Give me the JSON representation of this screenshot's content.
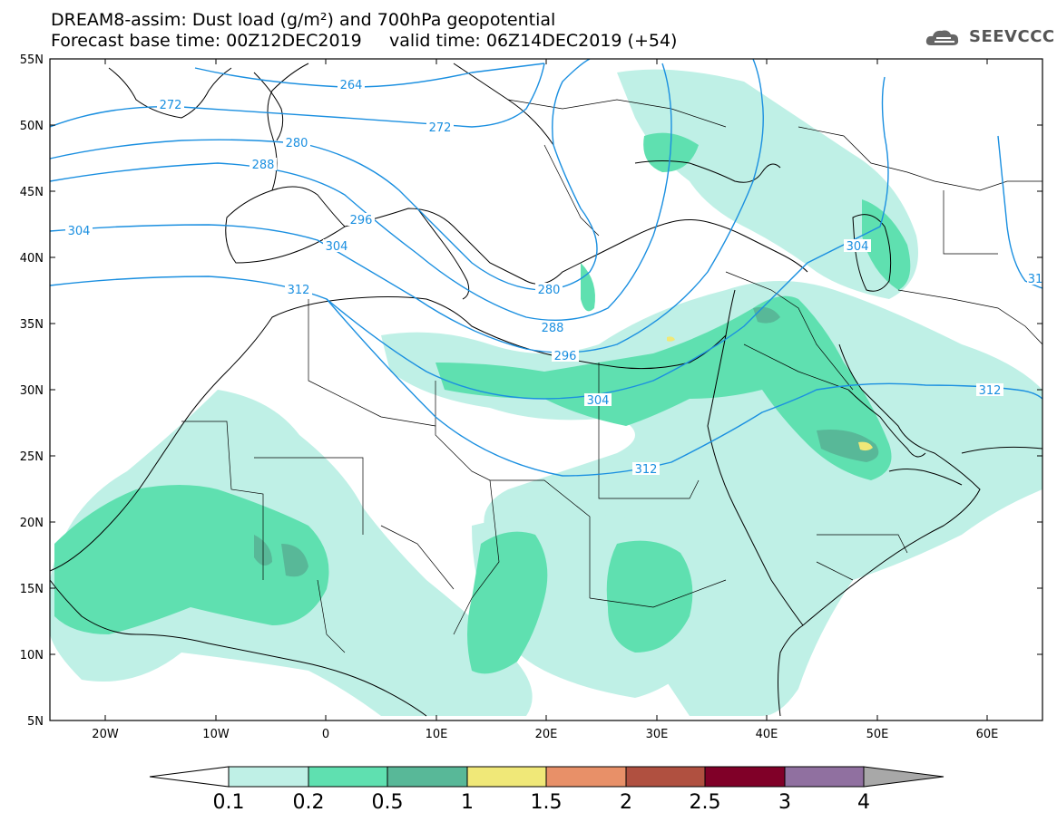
{
  "title": {
    "line1": "DREAM8-assim: Dust load (g/m²) and 700hPa geopotential",
    "line2": "Forecast base time: 00Z12DEC2019     valid time: 06Z14DEC2019 (+54)"
  },
  "logo": {
    "text": "SEEVCCC",
    "icon": "cloud-logo-icon"
  },
  "axes": {
    "lat_labels": [
      "55N",
      "50N",
      "45N",
      "40N",
      "35N",
      "30N",
      "25N",
      "20N",
      "15N",
      "10N",
      "5N"
    ],
    "lon_labels": [
      "20W",
      "10W",
      "0",
      "10E",
      "20E",
      "30E",
      "40E",
      "50E",
      "60E"
    ]
  },
  "contour_labels": [
    "264",
    "272",
    "272",
    "280",
    "288",
    "296",
    "304",
    "304",
    "312",
    "280",
    "288",
    "296",
    "304",
    "312",
    "304",
    "312",
    "31"
  ],
  "colorbar": {
    "ticks": [
      "0.1",
      "0.2",
      "0.5",
      "1",
      "1.5",
      "2",
      "2.5",
      "3",
      "4"
    ],
    "colors": [
      "#ffffff",
      "#bff0e6",
      "#5fe0b0",
      "#58b898",
      "#f0e878",
      "#e89068",
      "#b05040",
      "#800028",
      "#9070a0",
      "#a8a8a8"
    ]
  },
  "colors": {
    "contour": "#1a8fe0",
    "coast": "#000000"
  }
}
